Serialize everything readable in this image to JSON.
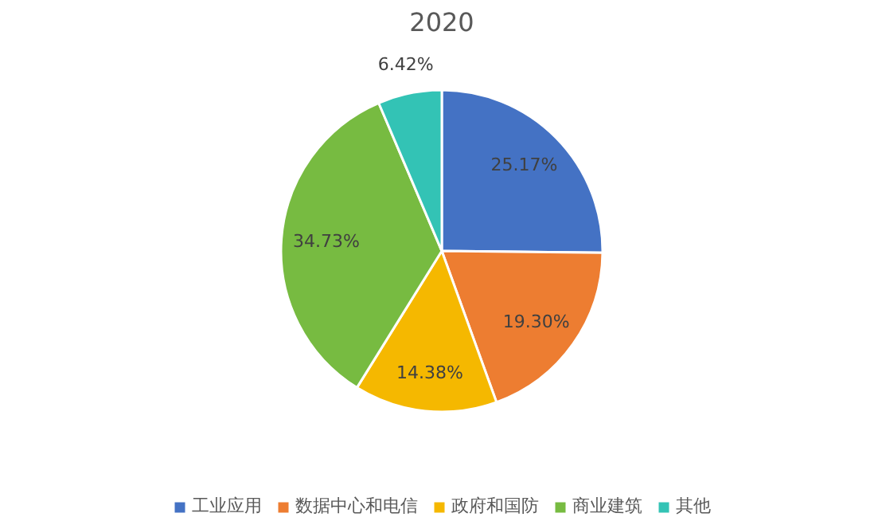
{
  "chart_data": {
    "type": "pie",
    "title": "2020",
    "categories": [
      "工业应用",
      "数据中心和电信",
      "政府和国防",
      "商业建筑",
      "其他"
    ],
    "values": [
      25.17,
      19.3,
      14.38,
      34.73,
      6.42
    ],
    "colors": [
      "#4472c4",
      "#ed7d31",
      "#f5b800",
      "#77bb41",
      "#33c3b5"
    ],
    "value_labels": [
      "25.17%",
      "19.30%",
      "14.38%",
      "34.73%",
      "6.42%"
    ],
    "legend": "bottom"
  }
}
